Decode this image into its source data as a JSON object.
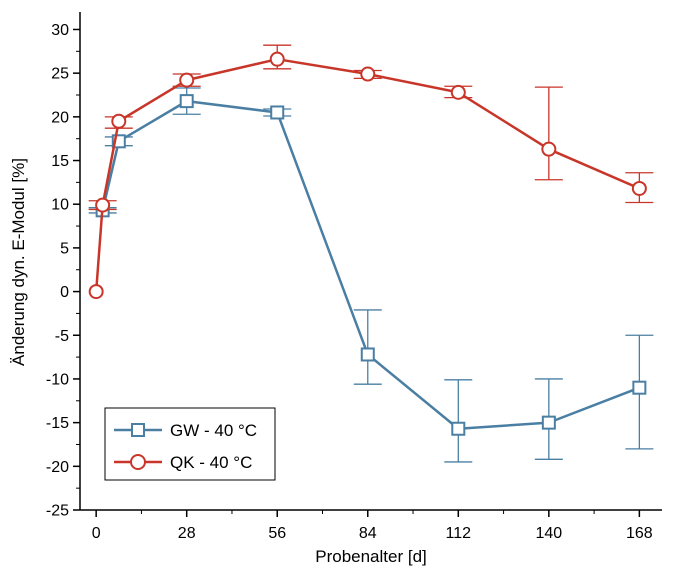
{
  "chart_data": {
    "type": "line",
    "xlabel": "Probenalter [d]",
    "ylabel": "Änderung dyn. E-Modul [%]",
    "xlim": [
      -5,
      175
    ],
    "ylim": [
      -25,
      32
    ],
    "xticks": [
      0,
      28,
      56,
      84,
      112,
      140,
      168
    ],
    "yticks": [
      -25,
      -20,
      -15,
      -10,
      -5,
      0,
      5,
      10,
      15,
      20,
      25,
      30
    ],
    "grid": false,
    "legend_position": "bottom-left",
    "series": [
      {
        "name": "GW - 40 °C",
        "color": "#4a7fa3",
        "marker": "square",
        "x": [
          2,
          7,
          28,
          56,
          84,
          112,
          140,
          168
        ],
        "y": [
          9.3,
          17.2,
          21.8,
          20.5,
          -7.2,
          -15.7,
          -15.0,
          -11.0
        ],
        "err_low": [
          0.3,
          0.5,
          1.5,
          0.4,
          3.4,
          3.8,
          4.2,
          7.0
        ],
        "err_high": [
          0.3,
          0.5,
          1.5,
          0.4,
          5.1,
          5.6,
          5.0,
          6.0
        ]
      },
      {
        "name": "QK - 40 °C",
        "color": "#c8362a",
        "marker": "circle",
        "x": [
          0,
          2,
          7,
          28,
          56,
          84,
          112,
          140,
          168
        ],
        "y": [
          0.0,
          9.9,
          19.5,
          24.2,
          26.6,
          24.9,
          22.8,
          16.3,
          11.8
        ],
        "err_low": [
          0.0,
          0.5,
          0.8,
          0.7,
          1.1,
          0.5,
          0.6,
          3.5,
          1.6
        ],
        "err_high": [
          0.0,
          0.5,
          0.5,
          0.7,
          1.6,
          0.4,
          0.7,
          7.1,
          1.8
        ]
      }
    ]
  }
}
